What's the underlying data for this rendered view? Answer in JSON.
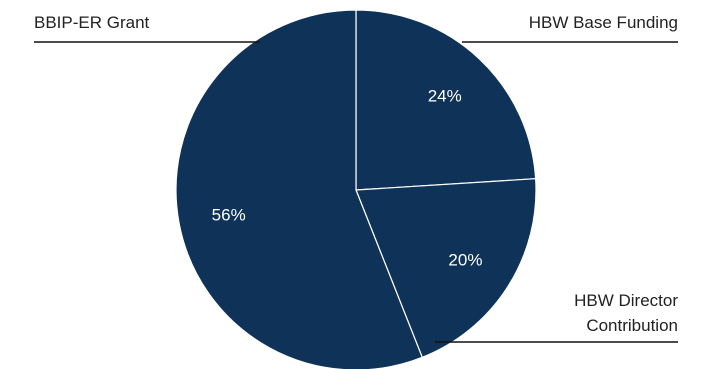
{
  "chart_data": {
    "type": "pie",
    "slices": [
      {
        "label": "HBW Base Funding",
        "lines": [
          "HBW Base Funding"
        ],
        "value": 24,
        "display": "24%"
      },
      {
        "label": "HBW Director Contribution",
        "lines": [
          "HBW Director",
          "Contribution"
        ],
        "value": 20,
        "display": "20%"
      },
      {
        "label": "BBIP-ER Grant",
        "lines": [
          "BBIP-ER Grant"
        ],
        "value": 56,
        "display": "56%"
      }
    ],
    "colors": {
      "slice": "#0f3358",
      "separator": "#ffffff",
      "leader": "#111111"
    },
    "start": "12 o'clock",
    "direction": "clockwise"
  }
}
